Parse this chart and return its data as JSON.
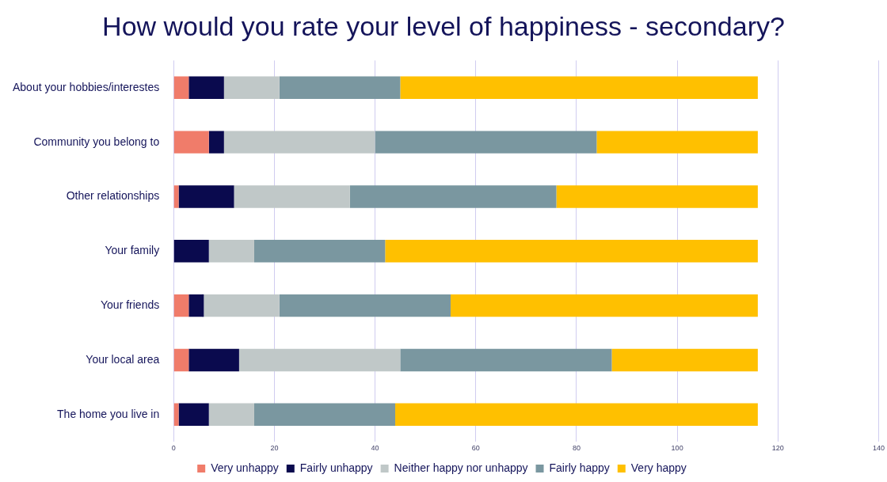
{
  "chart_data": {
    "type": "bar",
    "orientation": "horizontal",
    "stacked": true,
    "title": "How would you rate your level of happiness - secondary?",
    "categories": [
      "About your hobbies/interestes",
      "Community you belong to",
      "Other relationships",
      "Your family",
      "Your friends",
      "Your local area",
      "The home you live in"
    ],
    "series": [
      {
        "name": "Very unhappy",
        "color": "#f07c6a",
        "values": [
          3,
          7,
          1,
          0,
          3,
          3,
          1
        ]
      },
      {
        "name": "Fairly unhappy",
        "color": "#0a0a4e",
        "values": [
          7,
          3,
          11,
          7,
          3,
          10,
          6
        ]
      },
      {
        "name": "Neither happy nor unhappy",
        "color": "#c0c8c8",
        "values": [
          11,
          30,
          23,
          9,
          15,
          32,
          9
        ]
      },
      {
        "name": "Fairly happy",
        "color": "#7a97a0",
        "values": [
          24,
          44,
          41,
          26,
          34,
          42,
          28
        ]
      },
      {
        "name": "Very happy",
        "color": "#ffc000",
        "values": [
          71,
          32,
          40,
          74,
          61,
          29,
          72
        ]
      }
    ],
    "xlim": [
      0,
      140
    ],
    "xticks": [
      0,
      20,
      40,
      60,
      80,
      100,
      120,
      140
    ],
    "grid": "x",
    "legend": "bottom"
  }
}
